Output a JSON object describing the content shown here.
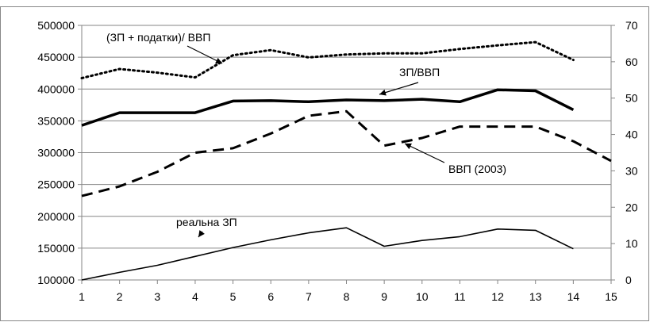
{
  "chart_data": {
    "type": "line",
    "x": [
      1,
      2,
      3,
      4,
      5,
      6,
      7,
      8,
      9,
      10,
      11,
      12,
      13,
      14,
      15
    ],
    "ylim_left": [
      100000,
      500000
    ],
    "ylim_right": [
      0,
      70
    ],
    "yticks_left": [
      "100000",
      "150000",
      "200000",
      "250000",
      "300000",
      "350000",
      "400000",
      "450000",
      "500000"
    ],
    "yticks_right": [
      "0",
      "10",
      "20",
      "30",
      "40",
      "50",
      "60",
      "70"
    ],
    "grid": true,
    "series": [
      {
        "name": "(ЗП + податки)/ ВВП",
        "axis": "right",
        "style": "dotted",
        "x": [
          1,
          2,
          3,
          4,
          5,
          6,
          7,
          8,
          9,
          10,
          11,
          12,
          13,
          14
        ],
        "values": [
          55.5,
          58,
          57,
          55.7,
          61.8,
          63.2,
          61.2,
          62,
          62.3,
          62.3,
          63.5,
          64.5,
          65.4,
          60.5
        ]
      },
      {
        "name": "ЗП/ВВП",
        "axis": "right",
        "style": "bold",
        "x": [
          1,
          2,
          3,
          4,
          5,
          6,
          7,
          8,
          9,
          10,
          11,
          12,
          13,
          14
        ],
        "values": [
          42.5,
          46,
          46,
          46,
          49.2,
          49.3,
          49,
          49.5,
          49.3,
          49.7,
          49,
          52.3,
          52,
          46.8
        ]
      },
      {
        "name": "ВВП (2003)",
        "axis": "left",
        "style": "dashed",
        "x": [
          1,
          2,
          3,
          4,
          5,
          6,
          7,
          8,
          9,
          10,
          11,
          12,
          13,
          14,
          15
        ],
        "values": [
          232000,
          247000,
          270000,
          300000,
          307000,
          330000,
          358000,
          365000,
          311000,
          323000,
          341000,
          341000,
          341000,
          318000,
          287000
        ]
      },
      {
        "name": "реальна ЗП",
        "axis": "left",
        "style": "thin",
        "x": [
          1,
          2,
          3,
          4,
          5,
          6,
          7,
          8,
          9,
          10,
          11,
          12,
          13,
          14
        ],
        "values": [
          100000,
          112000,
          123000,
          137000,
          151000,
          163000,
          174000,
          182000,
          153000,
          162000,
          168000,
          180000,
          178000,
          149000
        ]
      }
    ],
    "annotations": [
      {
        "text": "(ЗП + податки)/ ВВП",
        "target_series": 0
      },
      {
        "text": "ЗП/ВВП",
        "target_series": 1
      },
      {
        "text": "ВВП (2003)",
        "target_series": 2
      },
      {
        "text": "реальна ЗП",
        "target_series": 3
      }
    ]
  }
}
